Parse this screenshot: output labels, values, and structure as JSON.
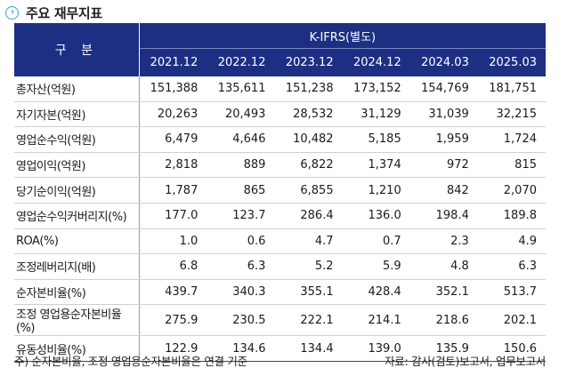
{
  "title": "주요 재무지표",
  "header": {
    "gubun": "구 분",
    "group": "K-IFRS(별도)",
    "periods": [
      "2021.12",
      "2022.12",
      "2023.12",
      "2024.12",
      "2024.03",
      "2025.03"
    ]
  },
  "rows": [
    {
      "label": "총자산(억원)",
      "values": [
        "151,388",
        "135,611",
        "151,238",
        "173,152",
        "154,769",
        "181,751"
      ]
    },
    {
      "label": "자기자본(억원)",
      "values": [
        "20,263",
        "20,493",
        "28,532",
        "31,129",
        "31,039",
        "32,215"
      ]
    },
    {
      "label": "영업순수익(억원)",
      "values": [
        "6,479",
        "4,646",
        "10,482",
        "5,185",
        "1,959",
        "1,724"
      ]
    },
    {
      "label": "영업이익(억원)",
      "values": [
        "2,818",
        "889",
        "6,822",
        "1,374",
        "972",
        "815"
      ]
    },
    {
      "label": "당기순이익(억원)",
      "values": [
        "1,787",
        "865",
        "6,855",
        "1,210",
        "842",
        "2,070"
      ]
    },
    {
      "label": "영업순수익커버리지(%)",
      "values": [
        "177.0",
        "123.7",
        "286.4",
        "136.0",
        "198.4",
        "189.8"
      ]
    },
    {
      "label": "ROA(%)",
      "values": [
        "1.0",
        "0.6",
        "4.7",
        "0.7",
        "2.3",
        "4.9"
      ]
    },
    {
      "label": "조정레버리지(배)",
      "values": [
        "6.8",
        "6.3",
        "5.2",
        "5.9",
        "4.8",
        "6.3"
      ]
    },
    {
      "label": "순자본비율(%)",
      "values": [
        "439.7",
        "340.3",
        "355.1",
        "428.4",
        "352.1",
        "513.7"
      ]
    },
    {
      "label": "조정 영업용순자본비율(%)",
      "values": [
        "275.9",
        "230.5",
        "222.1",
        "214.1",
        "218.6",
        "202.1"
      ]
    },
    {
      "label": "유동성비율(%)",
      "values": [
        "122.9",
        "134.6",
        "134.4",
        "139.0",
        "135.9",
        "150.6"
      ]
    }
  ],
  "footer": {
    "note": "주) 순자본비율, 조정 영업용순자본비율은 연결 기준",
    "source": "자료: 감사(검토)보고서, 업무보고서"
  },
  "colors": {
    "header_bg": "#1d2f83",
    "icon": "#2ba3d6"
  }
}
